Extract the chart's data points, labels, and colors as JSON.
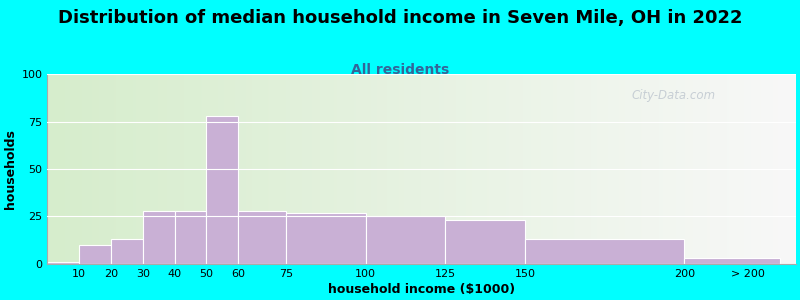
{
  "title": "Distribution of median household income in Seven Mile, OH in 2022",
  "subtitle": "All residents",
  "xlabel": "household income ($1000)",
  "ylabel": "households",
  "bar_labels": [
    "10",
    "20",
    "30",
    "40",
    "50",
    "60",
    "75",
    "100",
    "125",
    "150",
    "200",
    "> 200"
  ],
  "bar_values": [
    1,
    10,
    13,
    28,
    28,
    78,
    28,
    27,
    25,
    23,
    13,
    3
  ],
  "bar_color": "#c9b0d5",
  "bar_edge_color": "#ffffff",
  "ylim": [
    0,
    100
  ],
  "yticks": [
    0,
    25,
    50,
    75,
    100
  ],
  "bg_color": "#00ffff",
  "plot_bg_gradient_left": "#d6edcc",
  "plot_bg_gradient_right": "#f5f5f5",
  "title_fontsize": 13,
  "subtitle_fontsize": 10,
  "subtitle_color": "#336699",
  "axis_label_fontsize": 9,
  "tick_fontsize": 8,
  "watermark_text": "City-Data.com",
  "watermark_color": "#c0c8d0",
  "bin_edges": [
    0,
    10,
    20,
    30,
    40,
    50,
    60,
    75,
    100,
    125,
    150,
    200,
    230
  ],
  "tick_positions": [
    10,
    20,
    30,
    40,
    50,
    60,
    75,
    100,
    125,
    150,
    200,
    220
  ],
  "xlim": [
    0,
    235
  ]
}
